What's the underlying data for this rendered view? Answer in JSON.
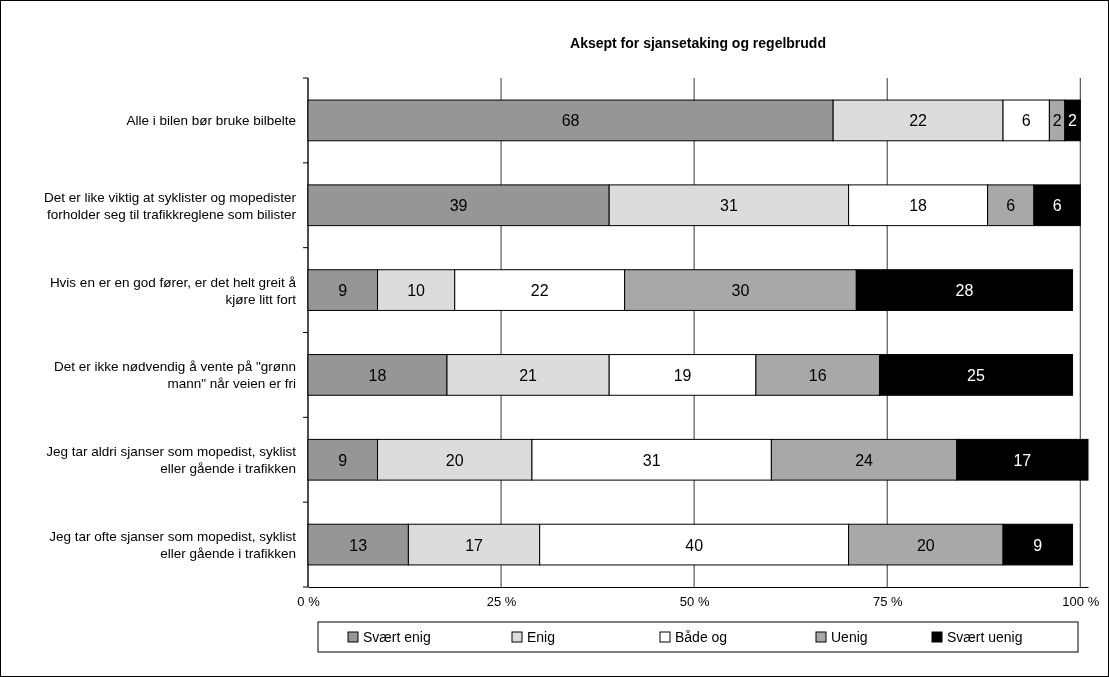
{
  "chart_data": {
    "type": "bar",
    "orientation": "horizontal",
    "stacked": true,
    "title": "Aksept for sjansetaking og regelbrudd",
    "categories": [
      "Alle i bilen bør bruke bilbelte",
      "Det er like viktig at syklister og mopedister forholder seg til trafikkreglene som bilister",
      "Hvis en er en god fører, er det helt greit å kjøre litt fort",
      "Det er ikke nødvendig å vente på \"grønn mann\" når veien er fri",
      "Jeg tar aldri sjanser som mopedist, syklist eller gående i trafikken",
      "Jeg tar ofte sjanser som mopedist, syklist eller gående i trafikken"
    ],
    "series": [
      {
        "name": "Svært enig",
        "color": "#969696",
        "values": [
          68,
          39,
          9,
          18,
          9,
          13
        ]
      },
      {
        "name": "Enig",
        "color": "#dcdcdc",
        "values": [
          22,
          31,
          10,
          21,
          20,
          17
        ]
      },
      {
        "name": "Både og",
        "color": "#ffffff",
        "values": [
          6,
          18,
          22,
          19,
          31,
          40
        ]
      },
      {
        "name": "Uenig",
        "color": "#a8a8a8",
        "values": [
          2,
          6,
          30,
          16,
          24,
          20
        ]
      },
      {
        "name": "Svært uenig",
        "color": "#000000",
        "values": [
          2,
          6,
          28,
          25,
          17,
          9
        ]
      }
    ],
    "xlim": [
      0,
      101
    ],
    "xticks": [
      {
        "value": 0,
        "label": "0 %"
      },
      {
        "value": 25,
        "label": "25 %"
      },
      {
        "value": 50,
        "label": "50 %"
      },
      {
        "value": 75,
        "label": "75 %"
      },
      {
        "value": 100,
        "label": "100 %"
      }
    ],
    "grid": "x",
    "legend": "bottom",
    "data_labels": true
  }
}
